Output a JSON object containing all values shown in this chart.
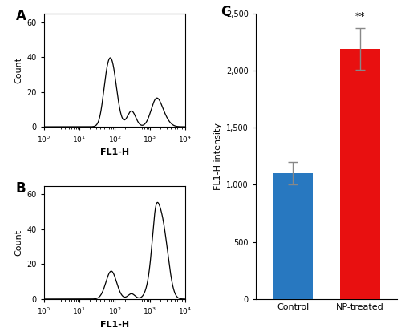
{
  "panel_A": {
    "label": "A",
    "xlabel": "FL1-H",
    "ylabel": "Count",
    "ylim": [
      0,
      65
    ],
    "yticks": [
      0,
      20,
      40,
      60
    ]
  },
  "panel_B": {
    "label": "B",
    "xlabel": "FL1-H",
    "ylabel": "Count",
    "ylim": [
      0,
      65
    ],
    "yticks": [
      0,
      20,
      40,
      60
    ]
  },
  "panel_C": {
    "label": "C",
    "ylabel": "FL1-H intensity",
    "categories": [
      "Control",
      "NP-treated"
    ],
    "values": [
      1100,
      2190
    ],
    "errors": [
      100,
      180
    ],
    "colors": [
      "#2878c0",
      "#e81010"
    ],
    "ylim": [
      0,
      2500
    ],
    "yticks": [
      0,
      500,
      1000,
      1500,
      2000,
      2500
    ],
    "ytick_labels": [
      "0",
      "500",
      "1,000",
      "1,500",
      "2,000",
      "2,500"
    ],
    "annotation": "**"
  }
}
